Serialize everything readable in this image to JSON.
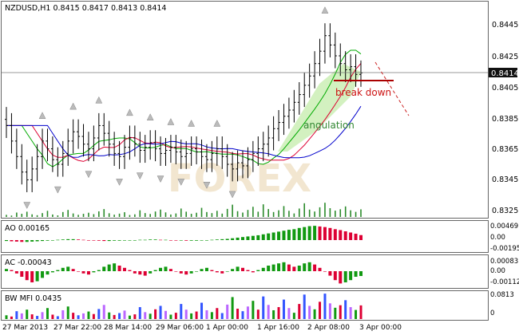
{
  "title": "NZDUSD,H1  0.8415 0.8417 0.8413 0.8414",
  "current_price": "0.8414",
  "watermark": "FOREX",
  "annotations": {
    "break_down": "break down",
    "angulation": "angulation"
  },
  "colors": {
    "bull": "#2aa02a",
    "bear": "#d45500",
    "up": "#119911",
    "down": "#dd0033",
    "lips": "#00aa00",
    "teeth": "#dd0033",
    "jaw": "#0000cc",
    "angulation_fill": "#c8eeb0",
    "break_line": "#aa0000"
  },
  "chart_data": [
    {
      "name": "price",
      "type": "candlestick",
      "title": "NZDUSD,H1  0.8415 0.8417 0.8413 0.8414",
      "ylim": [
        0.832,
        0.846
      ],
      "yticks": [
        "0.8445",
        "0.8425",
        "0.8405",
        "0.8385",
        "0.8365",
        "0.8345",
        "0.8325"
      ],
      "current_price": 0.8414,
      "series": [
        {
          "name": "close",
          "values": [
            0.838,
            0.837,
            0.836,
            0.835,
            0.8345,
            0.8352,
            0.836,
            0.837,
            0.8365,
            0.8358,
            0.8355,
            0.8362,
            0.837,
            0.8376,
            0.8373,
            0.8368,
            0.8365,
            0.8372,
            0.838,
            0.8375,
            0.8368,
            0.8362,
            0.836,
            0.8366,
            0.8372,
            0.8368,
            0.8364,
            0.8366,
            0.8369,
            0.8365,
            0.8362,
            0.8364,
            0.8366,
            0.8363,
            0.836,
            0.8362,
            0.8365,
            0.8363,
            0.836,
            0.8358,
            0.8362,
            0.8365,
            0.836,
            0.8355,
            0.8352,
            0.8356,
            0.8354,
            0.8358,
            0.8362,
            0.8365,
            0.8368,
            0.8372,
            0.8378,
            0.8382,
            0.8386,
            0.839,
            0.8395,
            0.84,
            0.8406,
            0.8412,
            0.842,
            0.8428,
            0.8438,
            0.8432,
            0.8425,
            0.842,
            0.8416,
            0.8418,
            0.8413,
            0.8414
          ]
        }
      ],
      "indicator_lines": [
        "lips",
        "teeth",
        "jaw"
      ],
      "annotations": [
        "break down",
        "angulation"
      ]
    },
    {
      "name": "ao",
      "type": "bar",
      "label": "AO 0.00165",
      "yticks": [
        "0.00469",
        "0.00",
        "-0.00195"
      ],
      "values": [
        -0.0003,
        -0.0004,
        -0.0005,
        -0.0006,
        -0.0006,
        -0.0005,
        -0.0004,
        -0.0003,
        -0.0002,
        -0.0001,
        0.0001,
        0.0002,
        0.0003,
        0.0003,
        0.0002,
        0.0001,
        0.0,
        -0.0001,
        -0.0002,
        -0.0003,
        -0.0003,
        -0.0002,
        -0.0002,
        -0.0001,
        -0.0001,
        0.0,
        0.0001,
        0.0001,
        0.0002,
        0.0002,
        0.0001,
        0.0001,
        0.0,
        -0.0001,
        -0.0001,
        -0.0002,
        -0.0002,
        -0.0002,
        -0.0001,
        -0.0001,
        0.0001,
        0.0002,
        0.0003,
        0.0004,
        0.0006,
        0.0008,
        0.001,
        0.0012,
        0.0014,
        0.0016,
        0.0019,
        0.0022,
        0.0025,
        0.0028,
        0.0031,
        0.0034,
        0.0036,
        0.004,
        0.0043,
        0.0046,
        0.0047,
        0.0045,
        0.0043,
        0.004,
        0.0036,
        0.0033,
        0.0029,
        0.0025,
        0.0021,
        0.00165
      ]
    },
    {
      "name": "ac",
      "type": "bar",
      "label": "AC -0.00043",
      "yticks": [
        "0.00083",
        "0.00",
        "-0.00112"
      ],
      "values": [
        0.0002,
        0.0001,
        -0.0002,
        -0.0005,
        -0.0008,
        -0.001,
        -0.0009,
        -0.0006,
        -0.0003,
        -0.0001,
        0.0001,
        0.0003,
        0.0004,
        0.0002,
        0.0,
        -0.0002,
        -0.0003,
        -0.0001,
        0.0001,
        0.0004,
        0.0006,
        0.0007,
        0.0005,
        0.0003,
        0.0001,
        -0.0002,
        -0.0003,
        -0.0004,
        -0.0002,
        0.0001,
        0.0003,
        0.0004,
        0.0002,
        0.0,
        -0.0002,
        -0.0003,
        -0.0002,
        0.0,
        0.0002,
        0.0003,
        0.0001,
        -0.0001,
        -0.0002,
        0.0,
        0.0002,
        0.0004,
        0.0003,
        0.0001,
        -0.0001,
        0.0001,
        0.0003,
        0.0005,
        0.0006,
        0.0007,
        0.0008,
        0.0006,
        0.0004,
        0.0005,
        0.0007,
        0.0008,
        0.0006,
        0.0003,
        0.0,
        -0.0004,
        -0.0008,
        -0.0011,
        -0.001,
        -0.0008,
        -0.0005,
        -0.00043
      ]
    },
    {
      "name": "mfi",
      "type": "bar",
      "label": "BW MFI 0.0435",
      "yticks": [
        "0.0813",
        "0"
      ],
      "values": [
        0.012,
        0.008,
        0.025,
        0.018,
        0.03,
        0.015,
        0.01,
        0.022,
        0.035,
        0.014,
        0.009,
        0.028,
        0.04,
        0.02,
        0.012,
        0.018,
        0.024,
        0.016,
        0.032,
        0.045,
        0.021,
        0.013,
        0.019,
        0.027,
        0.011,
        0.015,
        0.038,
        0.022,
        0.017,
        0.031,
        0.042,
        0.026,
        0.014,
        0.02,
        0.048,
        0.03,
        0.018,
        0.024,
        0.052,
        0.028,
        0.022,
        0.035,
        0.019,
        0.046,
        0.07,
        0.033,
        0.025,
        0.04,
        0.058,
        0.03,
        0.072,
        0.045,
        0.028,
        0.038,
        0.062,
        0.035,
        0.02,
        0.048,
        0.078,
        0.042,
        0.031,
        0.055,
        0.081,
        0.05,
        0.036,
        0.044,
        0.06,
        0.038,
        0.029,
        0.0435
      ]
    }
  ],
  "time_labels": [
    "27 Mar 2013",
    "27 Mar 22:00",
    "28 Mar 14:00",
    "29 Mar 06:00",
    "1 Apr 00:00",
    "1 Apr 16:00",
    "2 Apr 08:00",
    "3 Apr 00:00"
  ]
}
